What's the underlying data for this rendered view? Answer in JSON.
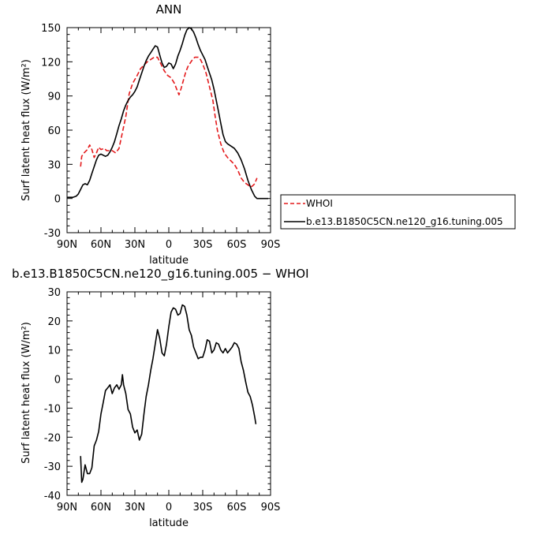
{
  "chart_data": [
    {
      "type": "line",
      "title": "ANN",
      "xlabel": "latitude",
      "ylabel": "Surf latent heat flux (W/m²)",
      "x_tick_labels": [
        "90N",
        "60N",
        "30N",
        "0",
        "30S",
        "60S",
        "90S"
      ],
      "x_tick_values": [
        90,
        60,
        30,
        0,
        -30,
        -60,
        -90
      ],
      "xlim": [
        90,
        -90
      ],
      "ylim": [
        -30,
        150
      ],
      "y_ticks": [
        -30,
        0,
        30,
        60,
        90,
        120,
        150
      ],
      "legend_position": "right, outside plot",
      "series": [
        {
          "name": "WHOI",
          "color": "#e41a1c",
          "dash": "dashed",
          "points": [
            [
              78,
              28
            ],
            [
              77,
              37
            ],
            [
              75,
              40
            ],
            [
              72,
              43
            ],
            [
              70,
              47
            ],
            [
              68,
              43
            ],
            [
              66,
              36
            ],
            [
              64,
              40
            ],
            [
              62,
              45
            ],
            [
              60,
              43
            ],
            [
              57,
              44
            ],
            [
              55,
              42
            ],
            [
              50,
              42
            ],
            [
              47,
              40
            ],
            [
              44,
              44
            ],
            [
              41,
              58
            ],
            [
              38,
              72
            ],
            [
              35,
              92
            ],
            [
              32,
              101
            ],
            [
              28,
              108
            ],
            [
              25,
              114
            ],
            [
              22,
              117
            ],
            [
              19,
              120
            ],
            [
              16,
              122
            ],
            [
              13,
              124
            ],
            [
              10,
              124
            ],
            [
              7,
              118
            ],
            [
              4,
              112
            ],
            [
              1,
              108
            ],
            [
              -2,
              106
            ],
            [
              -5,
              101
            ],
            [
              -7,
              96
            ],
            [
              -9,
              91
            ],
            [
              -11,
              97
            ],
            [
              -13,
              104
            ],
            [
              -15,
              111
            ],
            [
              -17,
              116
            ],
            [
              -19,
              119
            ],
            [
              -21,
              122
            ],
            [
              -23,
              124
            ],
            [
              -26,
              124
            ],
            [
              -28,
              122
            ],
            [
              -30,
              118
            ],
            [
              -33,
              110
            ],
            [
              -36,
              98
            ],
            [
              -39,
              86
            ],
            [
              -41,
              72
            ],
            [
              -43,
              60
            ],
            [
              -46,
              48
            ],
            [
              -49,
              40
            ],
            [
              -52,
              36
            ],
            [
              -55,
              33
            ],
            [
              -58,
              30
            ],
            [
              -61,
              25
            ],
            [
              -64,
              18
            ],
            [
              -67,
              14
            ],
            [
              -70,
              12
            ],
            [
              -72,
              10
            ],
            [
              -74,
              11
            ],
            [
              -76,
              13
            ],
            [
              -78,
              18
            ]
          ]
        },
        {
          "name": "b.e13.B1850C5CN.ne120_g16.tuning.005",
          "color": "#000000",
          "dash": "solid",
          "points": [
            [
              90,
              1
            ],
            [
              85,
              1
            ],
            [
              82,
              2
            ],
            [
              80,
              4
            ],
            [
              78,
              8
            ],
            [
              76,
              12
            ],
            [
              74,
              13
            ],
            [
              72,
              12
            ],
            [
              70,
              16
            ],
            [
              68,
              22
            ],
            [
              66,
              28
            ],
            [
              64,
              34
            ],
            [
              62,
              38
            ],
            [
              60,
              39
            ],
            [
              58,
              38
            ],
            [
              56,
              37
            ],
            [
              54,
              38
            ],
            [
              52,
              41
            ],
            [
              50,
              45
            ],
            [
              48,
              50
            ],
            [
              46,
              57
            ],
            [
              44,
              64
            ],
            [
              42,
              70
            ],
            [
              40,
              77
            ],
            [
              38,
              82
            ],
            [
              36,
              86
            ],
            [
              34,
              89
            ],
            [
              32,
              91
            ],
            [
              30,
              94
            ],
            [
              28,
              98
            ],
            [
              26,
              104
            ],
            [
              24,
              110
            ],
            [
              22,
              116
            ],
            [
              20,
              121
            ],
            [
              18,
              125
            ],
            [
              16,
              128
            ],
            [
              14,
              131
            ],
            [
              12,
              134
            ],
            [
              10,
              133
            ],
            [
              8,
              126
            ],
            [
              6,
              119
            ],
            [
              4,
              115
            ],
            [
              2,
              116
            ],
            [
              0,
              119
            ],
            [
              -2,
              118
            ],
            [
              -4,
              114
            ],
            [
              -6,
              118
            ],
            [
              -8,
              125
            ],
            [
              -10,
              130
            ],
            [
              -12,
              136
            ],
            [
              -14,
              143
            ],
            [
              -16,
              148
            ],
            [
              -18,
              150
            ],
            [
              -20,
              149
            ],
            [
              -22,
              146
            ],
            [
              -24,
              141
            ],
            [
              -26,
              135
            ],
            [
              -28,
              130
            ],
            [
              -30,
              126
            ],
            [
              -32,
              122
            ],
            [
              -34,
              116
            ],
            [
              -36,
              110
            ],
            [
              -38,
              104
            ],
            [
              -40,
              96
            ],
            [
              -42,
              86
            ],
            [
              -44,
              76
            ],
            [
              -46,
              66
            ],
            [
              -48,
              56
            ],
            [
              -50,
              50
            ],
            [
              -52,
              48
            ],
            [
              -55,
              46
            ],
            [
              -58,
              44
            ],
            [
              -61,
              40
            ],
            [
              -64,
              34
            ],
            [
              -67,
              26
            ],
            [
              -70,
              16
            ],
            [
              -73,
              8
            ],
            [
              -76,
              2
            ],
            [
              -78,
              0
            ],
            [
              -82,
              0
            ],
            [
              -86,
              0
            ],
            [
              -88,
              0
            ]
          ]
        }
      ]
    },
    {
      "type": "line",
      "title": "b.e13.B1850C5CN.ne120_g16.tuning.005 − WHOI",
      "xlabel": "latitude",
      "ylabel": "Surf latent heat flux (W/m²)",
      "x_tick_labels": [
        "90N",
        "60N",
        "30N",
        "0",
        "30S",
        "60S",
        "90S"
      ],
      "x_tick_values": [
        90,
        60,
        30,
        0,
        -30,
        -60,
        -90
      ],
      "xlim": [
        90,
        -90
      ],
      "ylim": [
        -40,
        30
      ],
      "y_ticks": [
        -40,
        -30,
        -20,
        -10,
        0,
        10,
        20,
        30
      ],
      "series": [
        {
          "color": "#000000",
          "dash": "solid",
          "points": [
            [
              78,
              -26.5
            ],
            [
              77,
              -35.5
            ],
            [
              76,
              -34.5
            ],
            [
              74,
              -29.5
            ],
            [
              72,
              -32.5
            ],
            [
              70,
              -32.5
            ],
            [
              68,
              -30.5
            ],
            [
              66,
              -23
            ],
            [
              64,
              -21
            ],
            [
              62,
              -18
            ],
            [
              60,
              -12
            ],
            [
              58,
              -8
            ],
            [
              56,
              -4
            ],
            [
              54,
              -3
            ],
            [
              52,
              -2
            ],
            [
              50,
              -5
            ],
            [
              48,
              -3
            ],
            [
              46,
              -2
            ],
            [
              44,
              -3.5
            ],
            [
              42,
              -2
            ],
            [
              41,
              1.5
            ],
            [
              40,
              -2
            ],
            [
              38,
              -5
            ],
            [
              36,
              -10.5
            ],
            [
              34,
              -12
            ],
            [
              32,
              -16.5
            ],
            [
              30,
              -18.5
            ],
            [
              28,
              -17.5
            ],
            [
              26,
              -21
            ],
            [
              24,
              -19
            ],
            [
              22,
              -12
            ],
            [
              20,
              -6
            ],
            [
              18,
              -2
            ],
            [
              16,
              3
            ],
            [
              14,
              7
            ],
            [
              12,
              12
            ],
            [
              10,
              17
            ],
            [
              8,
              14
            ],
            [
              6,
              9
            ],
            [
              4,
              8
            ],
            [
              2,
              12
            ],
            [
              0,
              18
            ],
            [
              -2,
              23
            ],
            [
              -4,
              24.5
            ],
            [
              -6,
              24
            ],
            [
              -8,
              22
            ],
            [
              -10,
              22.5
            ],
            [
              -12,
              25.5
            ],
            [
              -14,
              25
            ],
            [
              -16,
              22
            ],
            [
              -18,
              17
            ],
            [
              -20,
              15
            ],
            [
              -22,
              11
            ],
            [
              -24,
              9
            ],
            [
              -26,
              7
            ],
            [
              -28,
              7.5
            ],
            [
              -30,
              7.5
            ],
            [
              -32,
              10
            ],
            [
              -34,
              13.5
            ],
            [
              -36,
              13
            ],
            [
              -38,
              9
            ],
            [
              -40,
              10
            ],
            [
              -42,
              12.5
            ],
            [
              -44,
              12
            ],
            [
              -46,
              10
            ],
            [
              -48,
              9
            ],
            [
              -50,
              10.5
            ],
            [
              -52,
              9
            ],
            [
              -54,
              10
            ],
            [
              -56,
              11
            ],
            [
              -58,
              12.5
            ],
            [
              -60,
              12
            ],
            [
              -62,
              10.5
            ],
            [
              -64,
              6
            ],
            [
              -66,
              3
            ],
            [
              -68,
              -1
            ],
            [
              -70,
              -4.5
            ],
            [
              -72,
              -6
            ],
            [
              -74,
              -9
            ],
            [
              -76,
              -13
            ],
            [
              -77,
              -15.5
            ]
          ]
        }
      ]
    }
  ]
}
